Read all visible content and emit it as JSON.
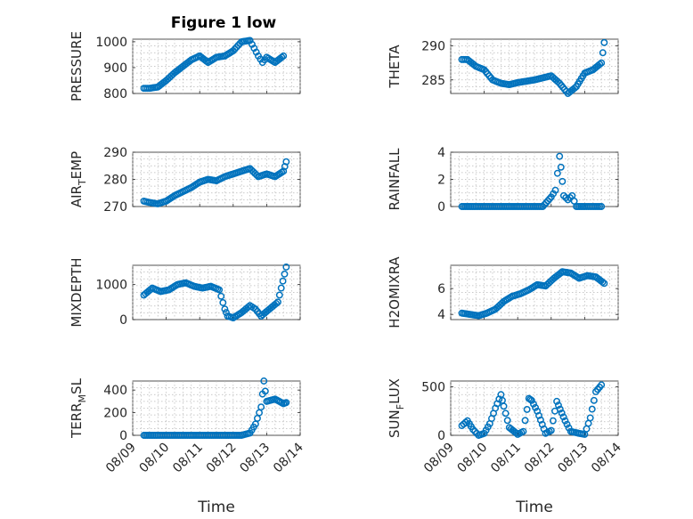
{
  "figure": {
    "title": "Figure 1 low"
  },
  "chart_data": [
    {
      "type": "scatter",
      "ylabel": "PRESSURE",
      "ylim": [
        800,
        1010
      ],
      "yticks": [
        800,
        900,
        1000
      ],
      "xlabel": "",
      "xlim": [
        "08/09",
        "08/14"
      ],
      "xticks": [],
      "grid": true,
      "x": [
        "08/09 08:00",
        "08/09 12:00",
        "08/09 18:00",
        "08/10 00:00",
        "08/10 06:00",
        "08/10 12:00",
        "08/10 18:00",
        "08/11 00:00",
        "08/11 06:00",
        "08/11 12:00",
        "08/11 18:00",
        "08/12 00:00",
        "08/12 06:00",
        "08/12 12:00",
        "08/12 15:00",
        "08/12 18:00",
        "08/12 21:00",
        "08/13 00:00",
        "08/13 06:00",
        "08/13 12:00"
      ],
      "y": [
        820,
        820,
        825,
        850,
        880,
        905,
        930,
        945,
        920,
        940,
        945,
        965,
        1000,
        1005,
        975,
        945,
        920,
        940,
        920,
        945
      ]
    },
    {
      "type": "scatter",
      "ylabel": "THETA",
      "ylim": [
        283,
        291
      ],
      "yticks": [
        285,
        290
      ],
      "xlabel": "",
      "xlim": [
        "08/09",
        "08/14"
      ],
      "xticks": [],
      "grid": true,
      "x": [
        "08/09 08:00",
        "08/09 12:00",
        "08/09 18:00",
        "08/10 00:00",
        "08/10 06:00",
        "08/10 12:00",
        "08/10 18:00",
        "08/11 00:00",
        "08/11 06:00",
        "08/11 12:00",
        "08/11 18:00",
        "08/12 00:00",
        "08/12 06:00",
        "08/12 12:00",
        "08/12 18:00",
        "08/13 00:00",
        "08/13 06:00",
        "08/13 12:00",
        "08/13 14:00"
      ],
      "y": [
        288,
        288,
        287,
        286.5,
        285,
        284.5,
        284.3,
        284.6,
        284.8,
        285,
        285.3,
        285.6,
        284.5,
        283,
        284,
        286,
        286.5,
        287.5,
        290.5
      ]
    },
    {
      "type": "scatter",
      "ylabel": "AIR_TEMP",
      "ylim": [
        270,
        290
      ],
      "yticks": [
        270,
        280,
        290
      ],
      "xlabel": "",
      "xlim": [
        "08/09",
        "08/14"
      ],
      "xticks": [],
      "grid": true,
      "x": [
        "08/09 08:00",
        "08/09 12:00",
        "08/09 18:00",
        "08/10 00:00",
        "08/10 06:00",
        "08/10 12:00",
        "08/10 18:00",
        "08/11 00:00",
        "08/11 06:00",
        "08/11 12:00",
        "08/11 18:00",
        "08/12 00:00",
        "08/12 06:00",
        "08/12 12:00",
        "08/12 18:00",
        "08/13 00:00",
        "08/13 06:00",
        "08/13 12:00",
        "08/13 14:00"
      ],
      "y": [
        272,
        271.5,
        271,
        272,
        274,
        275.5,
        277,
        279,
        280,
        279.5,
        281,
        282,
        283,
        284,
        281,
        282,
        281,
        283,
        286.5
      ]
    },
    {
      "type": "scatter",
      "ylabel": "RAINFALL",
      "ylim": [
        0,
        4
      ],
      "yticks": [
        0,
        2,
        4
      ],
      "xlabel": "",
      "xlim": [
        "08/09",
        "08/14"
      ],
      "xticks": [],
      "grid": true,
      "x": [
        "08/09 08:00",
        "08/09 18:00",
        "08/10 06:00",
        "08/10 18:00",
        "08/11 06:00",
        "08/11 18:00",
        "08/12 00:00",
        "08/12 03:00",
        "08/12 06:00",
        "08/12 07:00",
        "08/12 09:00",
        "08/12 12:00",
        "08/12 15:00",
        "08/12 18:00",
        "08/13 00:00",
        "08/13 12:00"
      ],
      "y": [
        0,
        0,
        0,
        0,
        0,
        0,
        0.7,
        1.2,
        3.7,
        2.9,
        0.8,
        0.5,
        0.8,
        0,
        0,
        0
      ]
    },
    {
      "type": "scatter",
      "ylabel": "MIXDEPTH",
      "ylim": [
        0,
        1550
      ],
      "yticks": [
        0,
        1000
      ],
      "xlabel": "",
      "xlim": [
        "08/09",
        "08/14"
      ],
      "xticks": [],
      "grid": true,
      "x": [
        "08/09 08:00",
        "08/09 14:00",
        "08/09 20:00",
        "08/10 02:00",
        "08/10 08:00",
        "08/10 14:00",
        "08/10 20:00",
        "08/11 02:00",
        "08/11 08:00",
        "08/11 14:00",
        "08/11 18:00",
        "08/11 20:00",
        "08/12 00:00",
        "08/12 06:00",
        "08/12 12:00",
        "08/12 16:00",
        "08/12 20:00",
        "08/13 02:00",
        "08/13 08:00",
        "08/13 14:00"
      ],
      "y": [
        700,
        900,
        800,
        850,
        1000,
        1050,
        950,
        900,
        950,
        850,
        300,
        100,
        50,
        200,
        400,
        300,
        100,
        300,
        500,
        1500
      ]
    },
    {
      "type": "scatter",
      "ylabel": "H2OMIXRA",
      "ylim": [
        3.6,
        7.8
      ],
      "yticks": [
        4,
        6
      ],
      "xlabel": "",
      "xlim": [
        "08/09",
        "08/14"
      ],
      "xticks": [],
      "grid": true,
      "x": [
        "08/09 08:00",
        "08/09 14:00",
        "08/09 20:00",
        "08/10 02:00",
        "08/10 08:00",
        "08/10 14:00",
        "08/10 20:00",
        "08/11 02:00",
        "08/11 08:00",
        "08/11 14:00",
        "08/11 20:00",
        "08/12 02:00",
        "08/12 08:00",
        "08/12 14:00",
        "08/12 20:00",
        "08/13 02:00",
        "08/13 08:00",
        "08/13 14:00"
      ],
      "y": [
        4.1,
        4.0,
        3.9,
        4.1,
        4.4,
        5.0,
        5.4,
        5.6,
        5.9,
        6.3,
        6.2,
        6.8,
        7.3,
        7.2,
        6.8,
        7.0,
        6.9,
        6.4
      ]
    },
    {
      "type": "scatter",
      "ylabel": "TERR_MSL",
      "ylim": [
        0,
        480
      ],
      "yticks": [
        0,
        200,
        400
      ],
      "xlabel": "Time",
      "xlim": [
        "08/09",
        "08/14"
      ],
      "xticks": [
        "08/09",
        "08/10",
        "08/11",
        "08/12",
        "08/13",
        "08/14"
      ],
      "grid": true,
      "x": [
        "08/09 08:00",
        "08/09 18:00",
        "08/10 06:00",
        "08/10 18:00",
        "08/11 06:00",
        "08/11 18:00",
        "08/12 06:00",
        "08/12 12:00",
        "08/12 16:00",
        "08/12 20:00",
        "08/12 22:00",
        "08/13 00:00",
        "08/13 06:00",
        "08/13 12:00",
        "08/13 14:00"
      ],
      "y": [
        0,
        0,
        0,
        0,
        0,
        0,
        0,
        20,
        100,
        250,
        480,
        300,
        320,
        280,
        290
      ]
    },
    {
      "type": "scatter",
      "ylabel": "SUN_FLUX",
      "ylim": [
        0,
        560
      ],
      "yticks": [
        0,
        500
      ],
      "xlabel": "Time",
      "xlim": [
        "08/09",
        "08/14"
      ],
      "xticks": [
        "08/09",
        "08/10",
        "08/11",
        "08/12",
        "08/13",
        "08/14"
      ],
      "grid": true,
      "x": [
        "08/09 08:00",
        "08/09 12:00",
        "08/09 16:00",
        "08/09 20:00",
        "08/10 00:00",
        "08/10 04:00",
        "08/10 08:00",
        "08/10 12:00",
        "08/10 14:00",
        "08/10 18:00",
        "08/11 00:00",
        "08/11 04:00",
        "08/11 08:00",
        "08/11 10:00",
        "08/11 14:00",
        "08/11 20:00",
        "08/12 00:00",
        "08/12 04:00",
        "08/12 10:00",
        "08/12 14:00",
        "08/12 20:00",
        "08/13 00:00",
        "08/13 04:00",
        "08/13 08:00",
        "08/13 12:00"
      ],
      "y": [
        100,
        150,
        60,
        0,
        20,
        120,
        280,
        420,
        300,
        80,
        10,
        40,
        380,
        360,
        250,
        20,
        50,
        350,
        150,
        40,
        20,
        10,
        180,
        450,
        520
      ]
    }
  ],
  "colors": {
    "marker": "#0072BD",
    "axes": "#262626"
  }
}
